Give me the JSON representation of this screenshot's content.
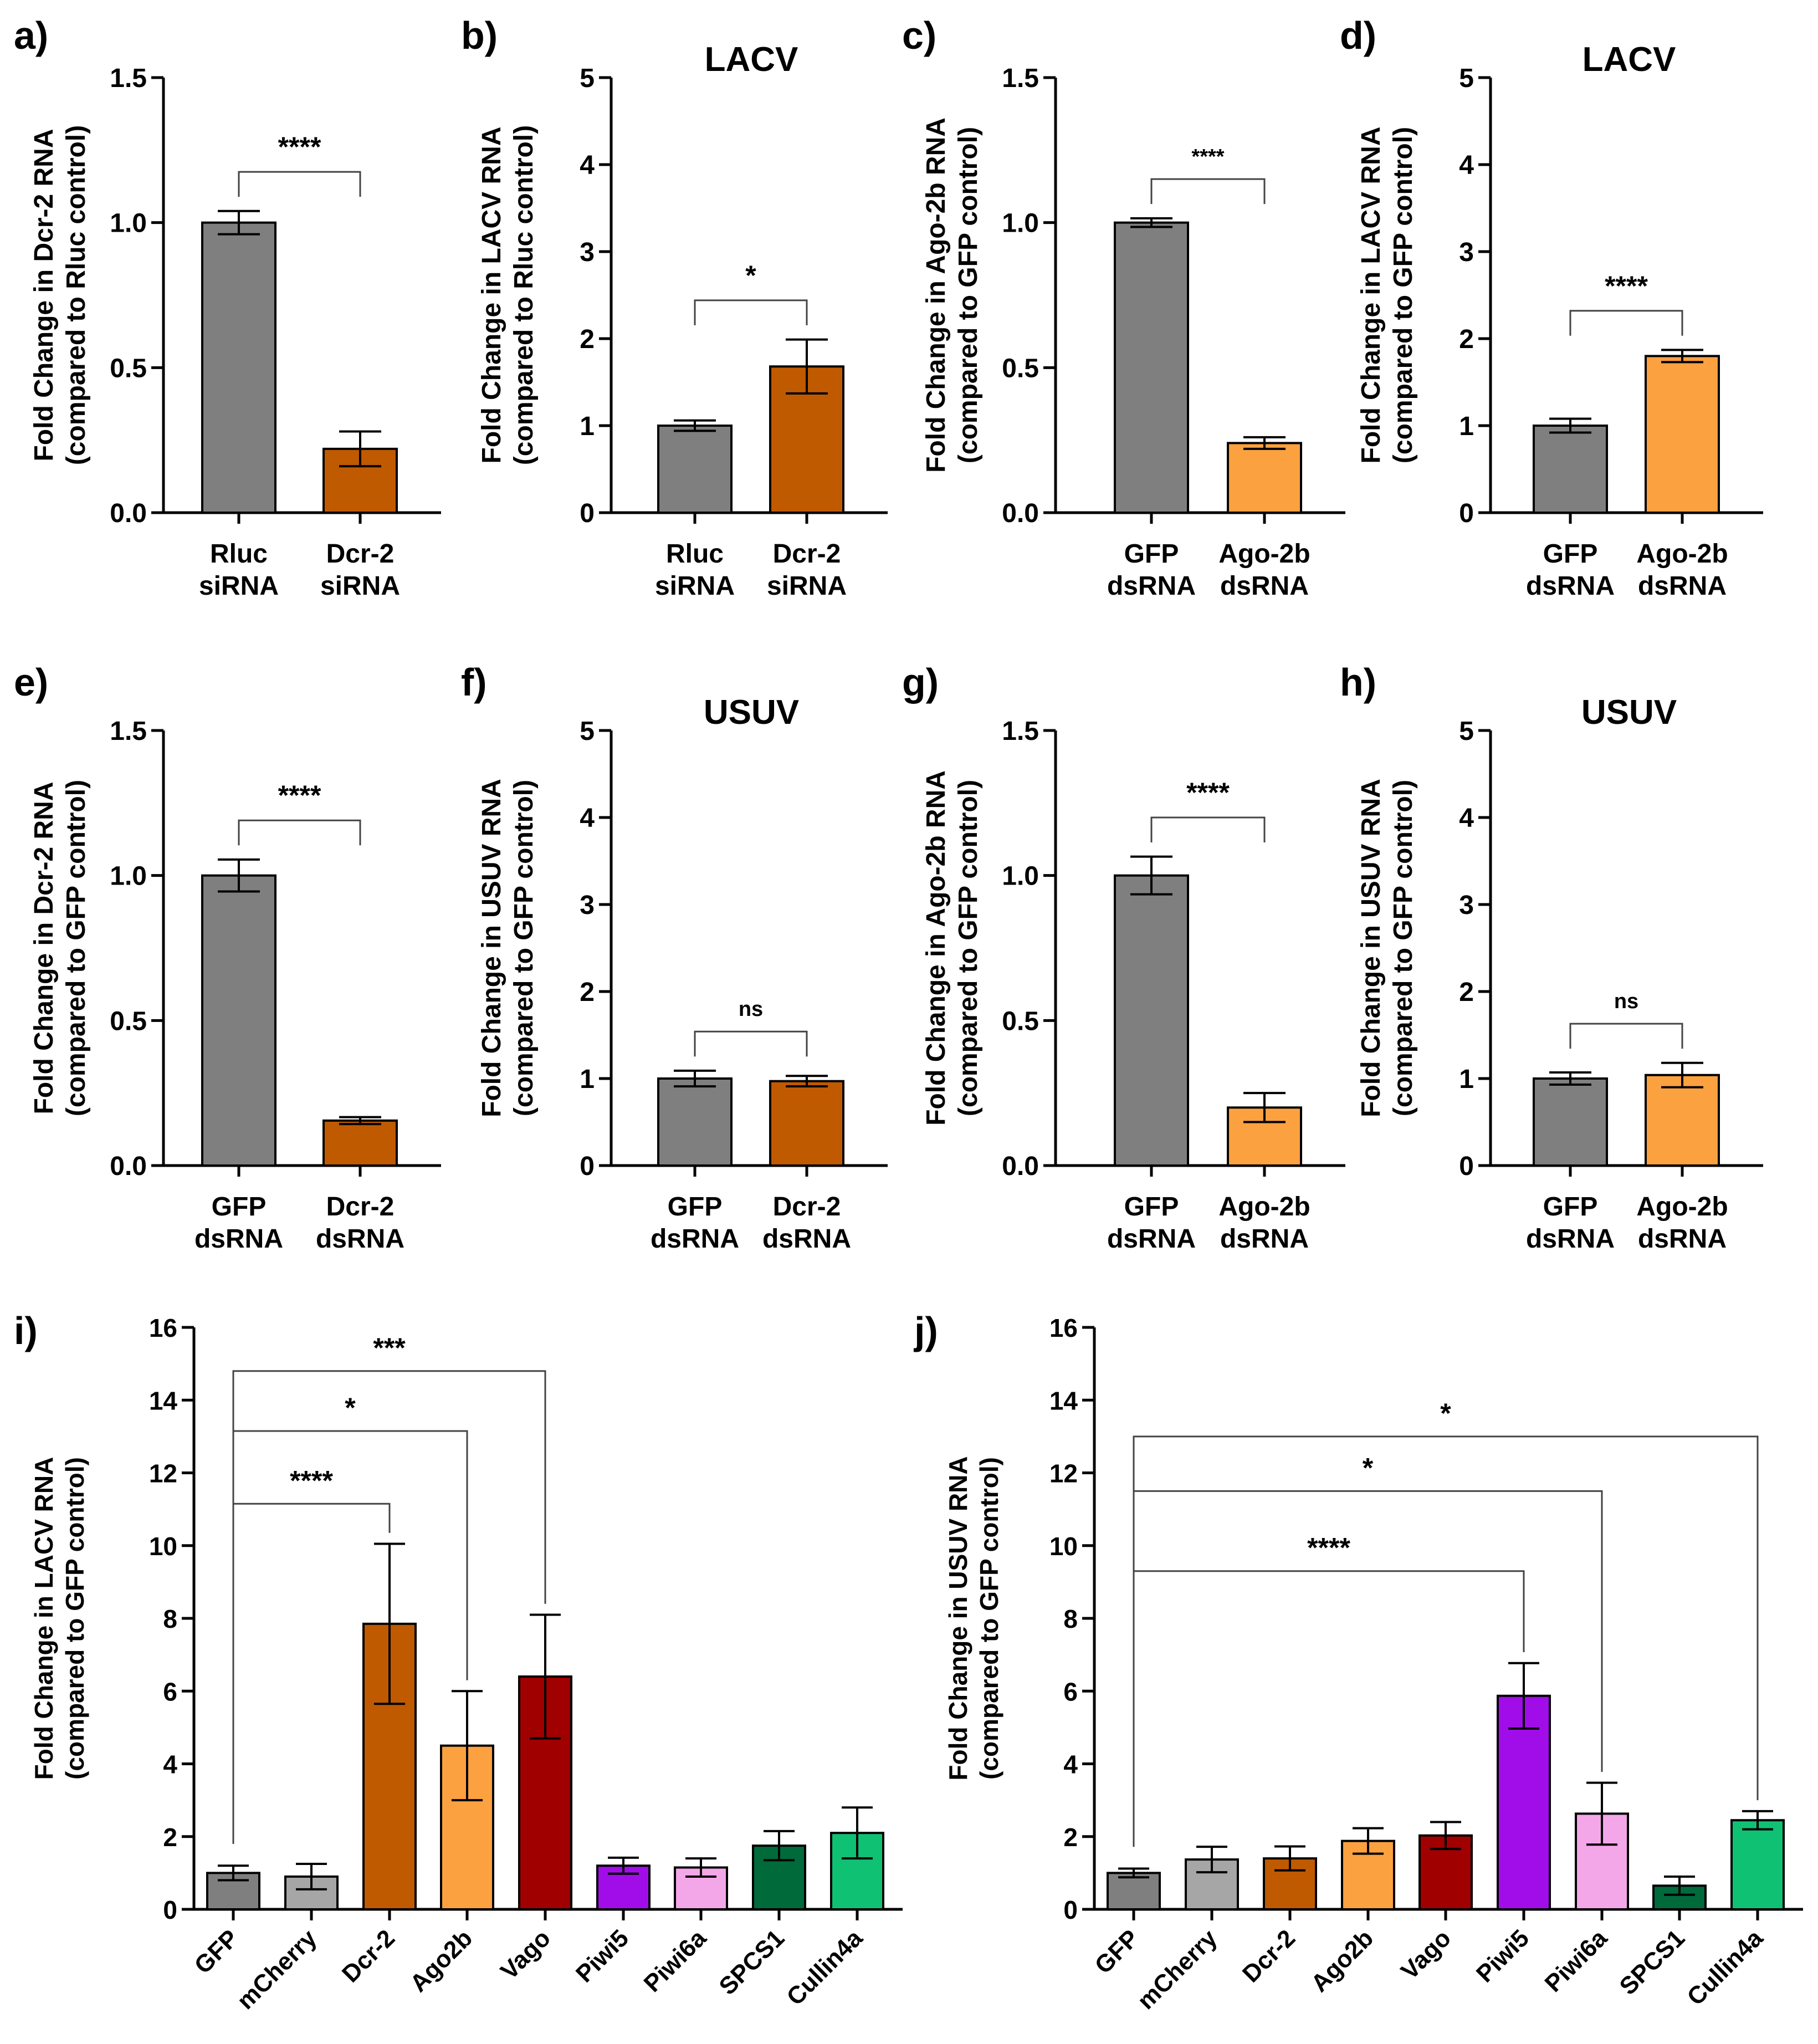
{
  "colors": {
    "gray": "#7f7f7f",
    "light_gray": "#a6a6a6",
    "dark_orange": "#c05a00",
    "light_orange": "#fca13f",
    "dark_red": "#a00000",
    "purple": "#a10de8",
    "pink": "#f3a7e8",
    "dark_green": "#006a3b",
    "green": "#0fc173"
  },
  "chart_data": [
    {
      "id": "a",
      "panel_label": "a)",
      "type": "bar",
      "title": "",
      "ylabel": [
        "Fold Change in Dcr-2 RNA",
        "(compared to Rluc control)"
      ],
      "ylim": [
        0,
        1.5
      ],
      "yticks": [
        "0.0",
        "0.5",
        "1.0",
        "1.5"
      ],
      "categories": [
        [
          "Rluc",
          "siRNA"
        ],
        [
          "Dcr-2",
          "siRNA"
        ]
      ],
      "values": [
        1.0,
        0.22
      ],
      "errors": [
        0.04,
        0.06
      ],
      "colors": [
        "gray",
        "dark_orange"
      ],
      "comparisons": [
        {
          "from": 0,
          "to": 1,
          "label": "****"
        }
      ]
    },
    {
      "id": "b",
      "panel_label": "b)",
      "type": "bar",
      "title": "LACV",
      "ylabel": [
        "Fold Change in LACV RNA",
        "(compared to Rluc control)"
      ],
      "ylim": [
        0,
        5
      ],
      "yticks": [
        "0",
        "1",
        "2",
        "3",
        "4",
        "5"
      ],
      "categories": [
        [
          "Rluc",
          "siRNA"
        ],
        [
          "Dcr-2",
          "siRNA"
        ]
      ],
      "values": [
        1.0,
        1.68
      ],
      "errors": [
        0.06,
        0.31
      ],
      "colors": [
        "gray",
        "dark_orange"
      ],
      "comparisons": [
        {
          "from": 0,
          "to": 1,
          "label": "*"
        }
      ]
    },
    {
      "id": "c",
      "panel_label": "c)",
      "type": "bar",
      "title": "",
      "ylabel": [
        "Fold Change in Ago-2b RNA",
        "(compared to GFP control)"
      ],
      "ylim": [
        0,
        1.5
      ],
      "yticks": [
        "0.0",
        "0.5",
        "1.0",
        "1.5"
      ],
      "categories": [
        [
          "GFP",
          "dsRNA"
        ],
        [
          "Ago-2b",
          "dsRNA"
        ]
      ],
      "values": [
        1.0,
        0.24
      ],
      "errors": [
        0.015,
        0.02
      ],
      "colors": [
        "gray",
        "light_orange"
      ],
      "comparisons": [
        {
          "from": 0,
          "to": 1,
          "label": "****"
        }
      ]
    },
    {
      "id": "d",
      "panel_label": "d)",
      "type": "bar",
      "title": "LACV",
      "ylabel": [
        "Fold Change in LACV RNA",
        "(compared to GFP control)"
      ],
      "ylim": [
        0,
        5
      ],
      "yticks": [
        "0",
        "1",
        "2",
        "3",
        "4",
        "5"
      ],
      "categories": [
        [
          "GFP",
          "dsRNA"
        ],
        [
          "Ago-2b",
          "dsRNA"
        ]
      ],
      "values": [
        1.0,
        1.8
      ],
      "errors": [
        0.08,
        0.07
      ],
      "colors": [
        "gray",
        "light_orange"
      ],
      "comparisons": [
        {
          "from": 0,
          "to": 1,
          "label": "****"
        }
      ]
    },
    {
      "id": "e",
      "panel_label": "e)",
      "type": "bar",
      "title": "",
      "ylabel": [
        "Fold Change in Dcr-2 RNA",
        "(compared to GFP control)"
      ],
      "ylim": [
        0,
        1.5
      ],
      "yticks": [
        "0.0",
        "0.5",
        "1.0",
        "1.5"
      ],
      "categories": [
        [
          "GFP",
          "dsRNA"
        ],
        [
          "Dcr-2",
          "dsRNA"
        ]
      ],
      "values": [
        1.0,
        0.155
      ],
      "errors": [
        0.055,
        0.012
      ],
      "colors": [
        "gray",
        "dark_orange"
      ],
      "comparisons": [
        {
          "from": 0,
          "to": 1,
          "label": "****"
        }
      ]
    },
    {
      "id": "f",
      "panel_label": "f)",
      "type": "bar",
      "title": "USUV",
      "ylabel": [
        "Fold Change in USUV RNA",
        "(compared to GFP control)"
      ],
      "ylim": [
        0,
        5
      ],
      "yticks": [
        "0",
        "1",
        "2",
        "3",
        "4",
        "5"
      ],
      "categories": [
        [
          "GFP",
          "dsRNA"
        ],
        [
          "Dcr-2",
          "dsRNA"
        ]
      ],
      "values": [
        1.0,
        0.97
      ],
      "errors": [
        0.09,
        0.06
      ],
      "colors": [
        "gray",
        "dark_orange"
      ],
      "comparisons": [
        {
          "from": 0,
          "to": 1,
          "label": "ns"
        }
      ]
    },
    {
      "id": "g",
      "panel_label": "g)",
      "type": "bar",
      "title": "",
      "ylabel": [
        "Fold Change in Ago-2b RNA",
        "(compared to GFP control)"
      ],
      "ylim": [
        0,
        1.5
      ],
      "yticks": [
        "0.0",
        "0.5",
        "1.0",
        "1.5"
      ],
      "categories": [
        [
          "GFP",
          "dsRNA"
        ],
        [
          "Ago-2b",
          "dsRNA"
        ]
      ],
      "values": [
        1.0,
        0.2
      ],
      "errors": [
        0.065,
        0.05
      ],
      "colors": [
        "gray",
        "light_orange"
      ],
      "comparisons": [
        {
          "from": 0,
          "to": 1,
          "label": "****"
        }
      ]
    },
    {
      "id": "h",
      "panel_label": "h)",
      "type": "bar",
      "title": "USUV",
      "ylabel": [
        "Fold Change in USUV RNA",
        "(compared to GFP control)"
      ],
      "ylim": [
        0,
        5
      ],
      "yticks": [
        "0",
        "1",
        "2",
        "3",
        "4",
        "5"
      ],
      "categories": [
        [
          "GFP",
          "dsRNA"
        ],
        [
          "Ago-2b",
          "dsRNA"
        ]
      ],
      "values": [
        1.0,
        1.04
      ],
      "errors": [
        0.07,
        0.14
      ],
      "colors": [
        "gray",
        "light_orange"
      ],
      "comparisons": [
        {
          "from": 0,
          "to": 1,
          "label": "ns"
        }
      ]
    },
    {
      "id": "i",
      "panel_label": "i)",
      "type": "bar",
      "title": "",
      "ylabel": [
        "Fold Change in LACV RNA",
        "(compared to GFP control)"
      ],
      "ylim": [
        0,
        16
      ],
      "yticks": [
        "0",
        "2",
        "4",
        "6",
        "8",
        "10",
        "12",
        "14",
        "16"
      ],
      "categories": [
        "GFP",
        "mCherry",
        "Dcr-2",
        "Ago2b",
        "Vago",
        "Piwi5",
        "Piwi6a",
        "SPCS1",
        "Cullin4a"
      ],
      "values": [
        1.0,
        0.9,
        7.85,
        4.5,
        6.4,
        1.2,
        1.15,
        1.75,
        2.1
      ],
      "errors": [
        0.2,
        0.35,
        2.2,
        1.5,
        1.7,
        0.22,
        0.25,
        0.4,
        0.7
      ],
      "colors": [
        "gray",
        "light_gray",
        "dark_orange",
        "light_orange",
        "dark_red",
        "purple",
        "pink",
        "dark_green",
        "green"
      ],
      "comparisons": [
        {
          "from": 0,
          "to": 2,
          "label": "****"
        },
        {
          "from": 0,
          "to": 3,
          "label": "*"
        },
        {
          "from": 0,
          "to": 4,
          "label": "***"
        }
      ]
    },
    {
      "id": "j",
      "panel_label": "j)",
      "type": "bar",
      "title": "",
      "ylabel": [
        "Fold Change in USUV RNA",
        "(compared to GFP control)"
      ],
      "ylim": [
        0,
        16
      ],
      "yticks": [
        "0",
        "2",
        "4",
        "6",
        "8",
        "10",
        "12",
        "14",
        "16"
      ],
      "categories": [
        "GFP",
        "mCherry",
        "Dcr-2",
        "Ago2b",
        "Vago",
        "Piwi5",
        "Piwi6a",
        "SPCS1",
        "Cullin4a"
      ],
      "values": [
        1.0,
        1.37,
        1.4,
        1.88,
        2.03,
        5.87,
        2.63,
        0.65,
        2.45
      ],
      "errors": [
        0.12,
        0.35,
        0.33,
        0.35,
        0.37,
        0.9,
        0.85,
        0.25,
        0.25
      ],
      "colors": [
        "gray",
        "light_gray",
        "dark_orange",
        "light_orange",
        "dark_red",
        "purple",
        "pink",
        "dark_green",
        "green"
      ],
      "comparisons": [
        {
          "from": 0,
          "to": 5,
          "label": "****"
        },
        {
          "from": 0,
          "to": 6,
          "label": "*"
        },
        {
          "from": 0,
          "to": 8,
          "label": "*"
        }
      ]
    }
  ]
}
